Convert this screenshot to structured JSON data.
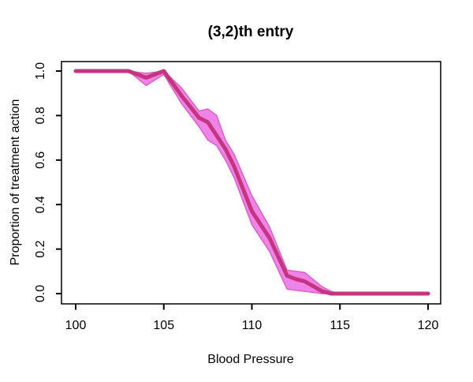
{
  "chart_data": {
    "type": "line",
    "title": "(3,2)th entry",
    "xlabel": "Blood Pressure",
    "ylabel": "Proportion of treatment action",
    "xlim": [
      100,
      120
    ],
    "ylim": [
      0.0,
      1.0
    ],
    "x_ticks": [
      100,
      105,
      110,
      115,
      120
    ],
    "y_ticks": [
      "0.0",
      "0.2",
      "0.4",
      "0.6",
      "0.8",
      "1.0"
    ],
    "grid": false,
    "legend": false,
    "x": [
      100,
      103,
      104,
      105,
      106,
      107,
      107.5,
      108,
      108.5,
      109,
      110,
      111,
      112,
      112.5,
      113,
      114,
      114.5,
      115,
      120
    ],
    "series": [
      {
        "name": "median",
        "values": [
          1.0,
          1.0,
          0.97,
          1.0,
          0.89,
          0.79,
          0.77,
          0.71,
          0.65,
          0.57,
          0.37,
          0.25,
          0.08,
          0.065,
          0.055,
          0.01,
          0.0,
          0.0,
          0.0
        ]
      },
      {
        "name": "band-upper",
        "values": [
          1.0,
          1.0,
          0.99,
          1.0,
          0.925,
          0.82,
          0.83,
          0.8,
          0.69,
          0.625,
          0.44,
          0.3,
          0.105,
          0.1,
          0.095,
          0.03,
          0.01,
          0.0,
          0.0
        ]
      },
      {
        "name": "band-lower",
        "values": [
          1.0,
          1.0,
          0.935,
          0.985,
          0.855,
          0.75,
          0.69,
          0.665,
          0.6,
          0.52,
          0.31,
          0.19,
          0.02,
          0.015,
          0.01,
          0.0,
          0.0,
          0.0,
          0.0
        ]
      }
    ],
    "colors": {
      "line": "#C5357F",
      "band_fill": "#EE84E8",
      "band_edge": "#DD5FC6",
      "axis": "#000000"
    }
  }
}
